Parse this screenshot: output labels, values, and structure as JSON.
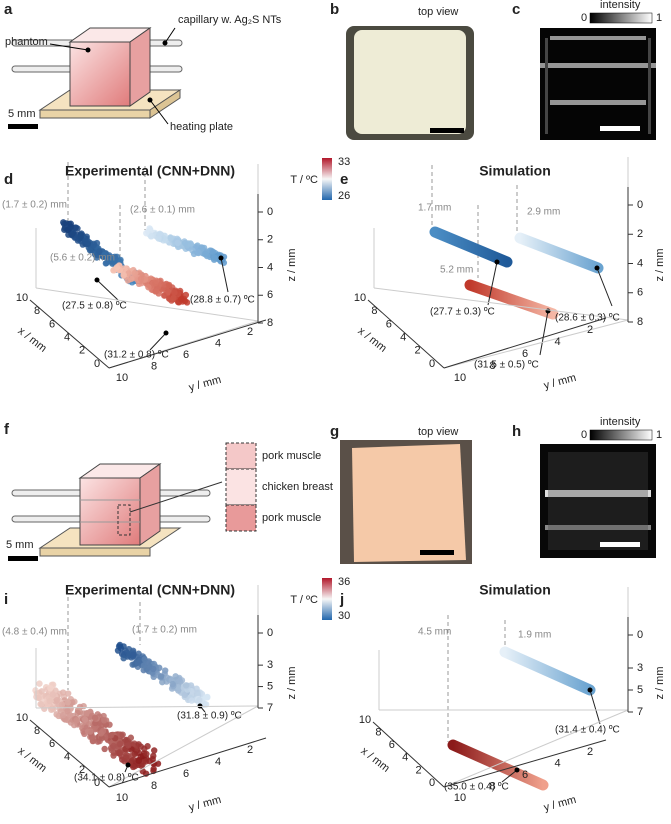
{
  "a": {
    "label": "a",
    "phantom": "phantom",
    "capillary": "capillary w. Ag₂S NTs",
    "plate": "heating plate",
    "scale": "5 mm"
  },
  "b": {
    "label": "b",
    "view": "top view"
  },
  "c": {
    "label": "c",
    "intensity": "intensity",
    "min": 0,
    "max": 1
  },
  "d": {
    "label": "d",
    "title": "Experimental (CNN+DNN)",
    "colorbar": {
      "label": "T / ºC",
      "max": 33,
      "min": 26
    },
    "annotations": [
      "(1.7 ± 0.2) mm",
      "(2.6 ± 0.1) mm",
      "(5.6 ± 0.2) mm",
      "(27.5 ± 0.8) ºC",
      "(28.8 ± 0.7) ºC",
      "(31.2 ± 0.8) ºC"
    ],
    "axes": {
      "x_label": "x / mm",
      "y_label": "y / mm",
      "z_label": "z / mm",
      "xticks": [
        10,
        8,
        6,
        4,
        2,
        0
      ],
      "yticks": [
        10,
        8,
        6,
        4,
        2
      ],
      "zticks": [
        0,
        2,
        4,
        6,
        8
      ]
    }
  },
  "e": {
    "label": "e",
    "title": "Simulation",
    "annotations": [
      "1.7 mm",
      "2.9 mm",
      "5.2 mm",
      "(27.7 ± 0.3) ºC",
      "(28.6 ± 0.3) ºC",
      "(31.5 ± 0.5) ºC"
    ],
    "axes": {
      "x_label": "x / mm",
      "y_label": "y / mm",
      "z_label": "z / mm",
      "xticks": [
        10,
        8,
        6,
        4,
        2,
        0
      ],
      "yticks": [
        10,
        8,
        6,
        4,
        2
      ],
      "zticks": [
        0,
        2,
        4,
        6,
        8
      ]
    }
  },
  "f": {
    "label": "f",
    "layers": [
      "pork muscle",
      "chicken breast",
      "pork muscle"
    ],
    "scale": "5 mm"
  },
  "g": {
    "label": "g",
    "view": "top view"
  },
  "h": {
    "label": "h",
    "intensity": "intensity",
    "min": 0,
    "max": 1
  },
  "i": {
    "label": "i",
    "title": "Experimental (CNN+DNN)",
    "colorbar": {
      "label": "T / ºC",
      "max": 36,
      "min": 30
    },
    "annotations": [
      "(4.8 ± 0.4) mm",
      "(1.7 ± 0.2) mm",
      "(31.8 ± 0.9) ºC",
      "(34.1 ± 0.8) ºC"
    ],
    "axes": {
      "x_label": "x / mm",
      "y_label": "y / mm",
      "z_label": "z / mm",
      "xticks": [
        10,
        8,
        6,
        4,
        2,
        0
      ],
      "yticks": [
        10,
        8,
        6,
        4,
        2
      ],
      "zticks": [
        0,
        3,
        5,
        7
      ]
    }
  },
  "j": {
    "label": "j",
    "title": "Simulation",
    "annotations": [
      "4.5 mm",
      "1.9 mm",
      "(31.4 ± 0.4) ºC",
      "(35.0 ± 0.4) ºC"
    ],
    "axes": {
      "x_label": "x / mm",
      "y_label": "y / mm",
      "z_label": "z / mm",
      "xticks": [
        10,
        8,
        6,
        4,
        2,
        0
      ],
      "yticks": [
        10,
        8,
        6,
        4,
        2
      ],
      "zticks": [
        0,
        3,
        5,
        7
      ]
    }
  }
}
